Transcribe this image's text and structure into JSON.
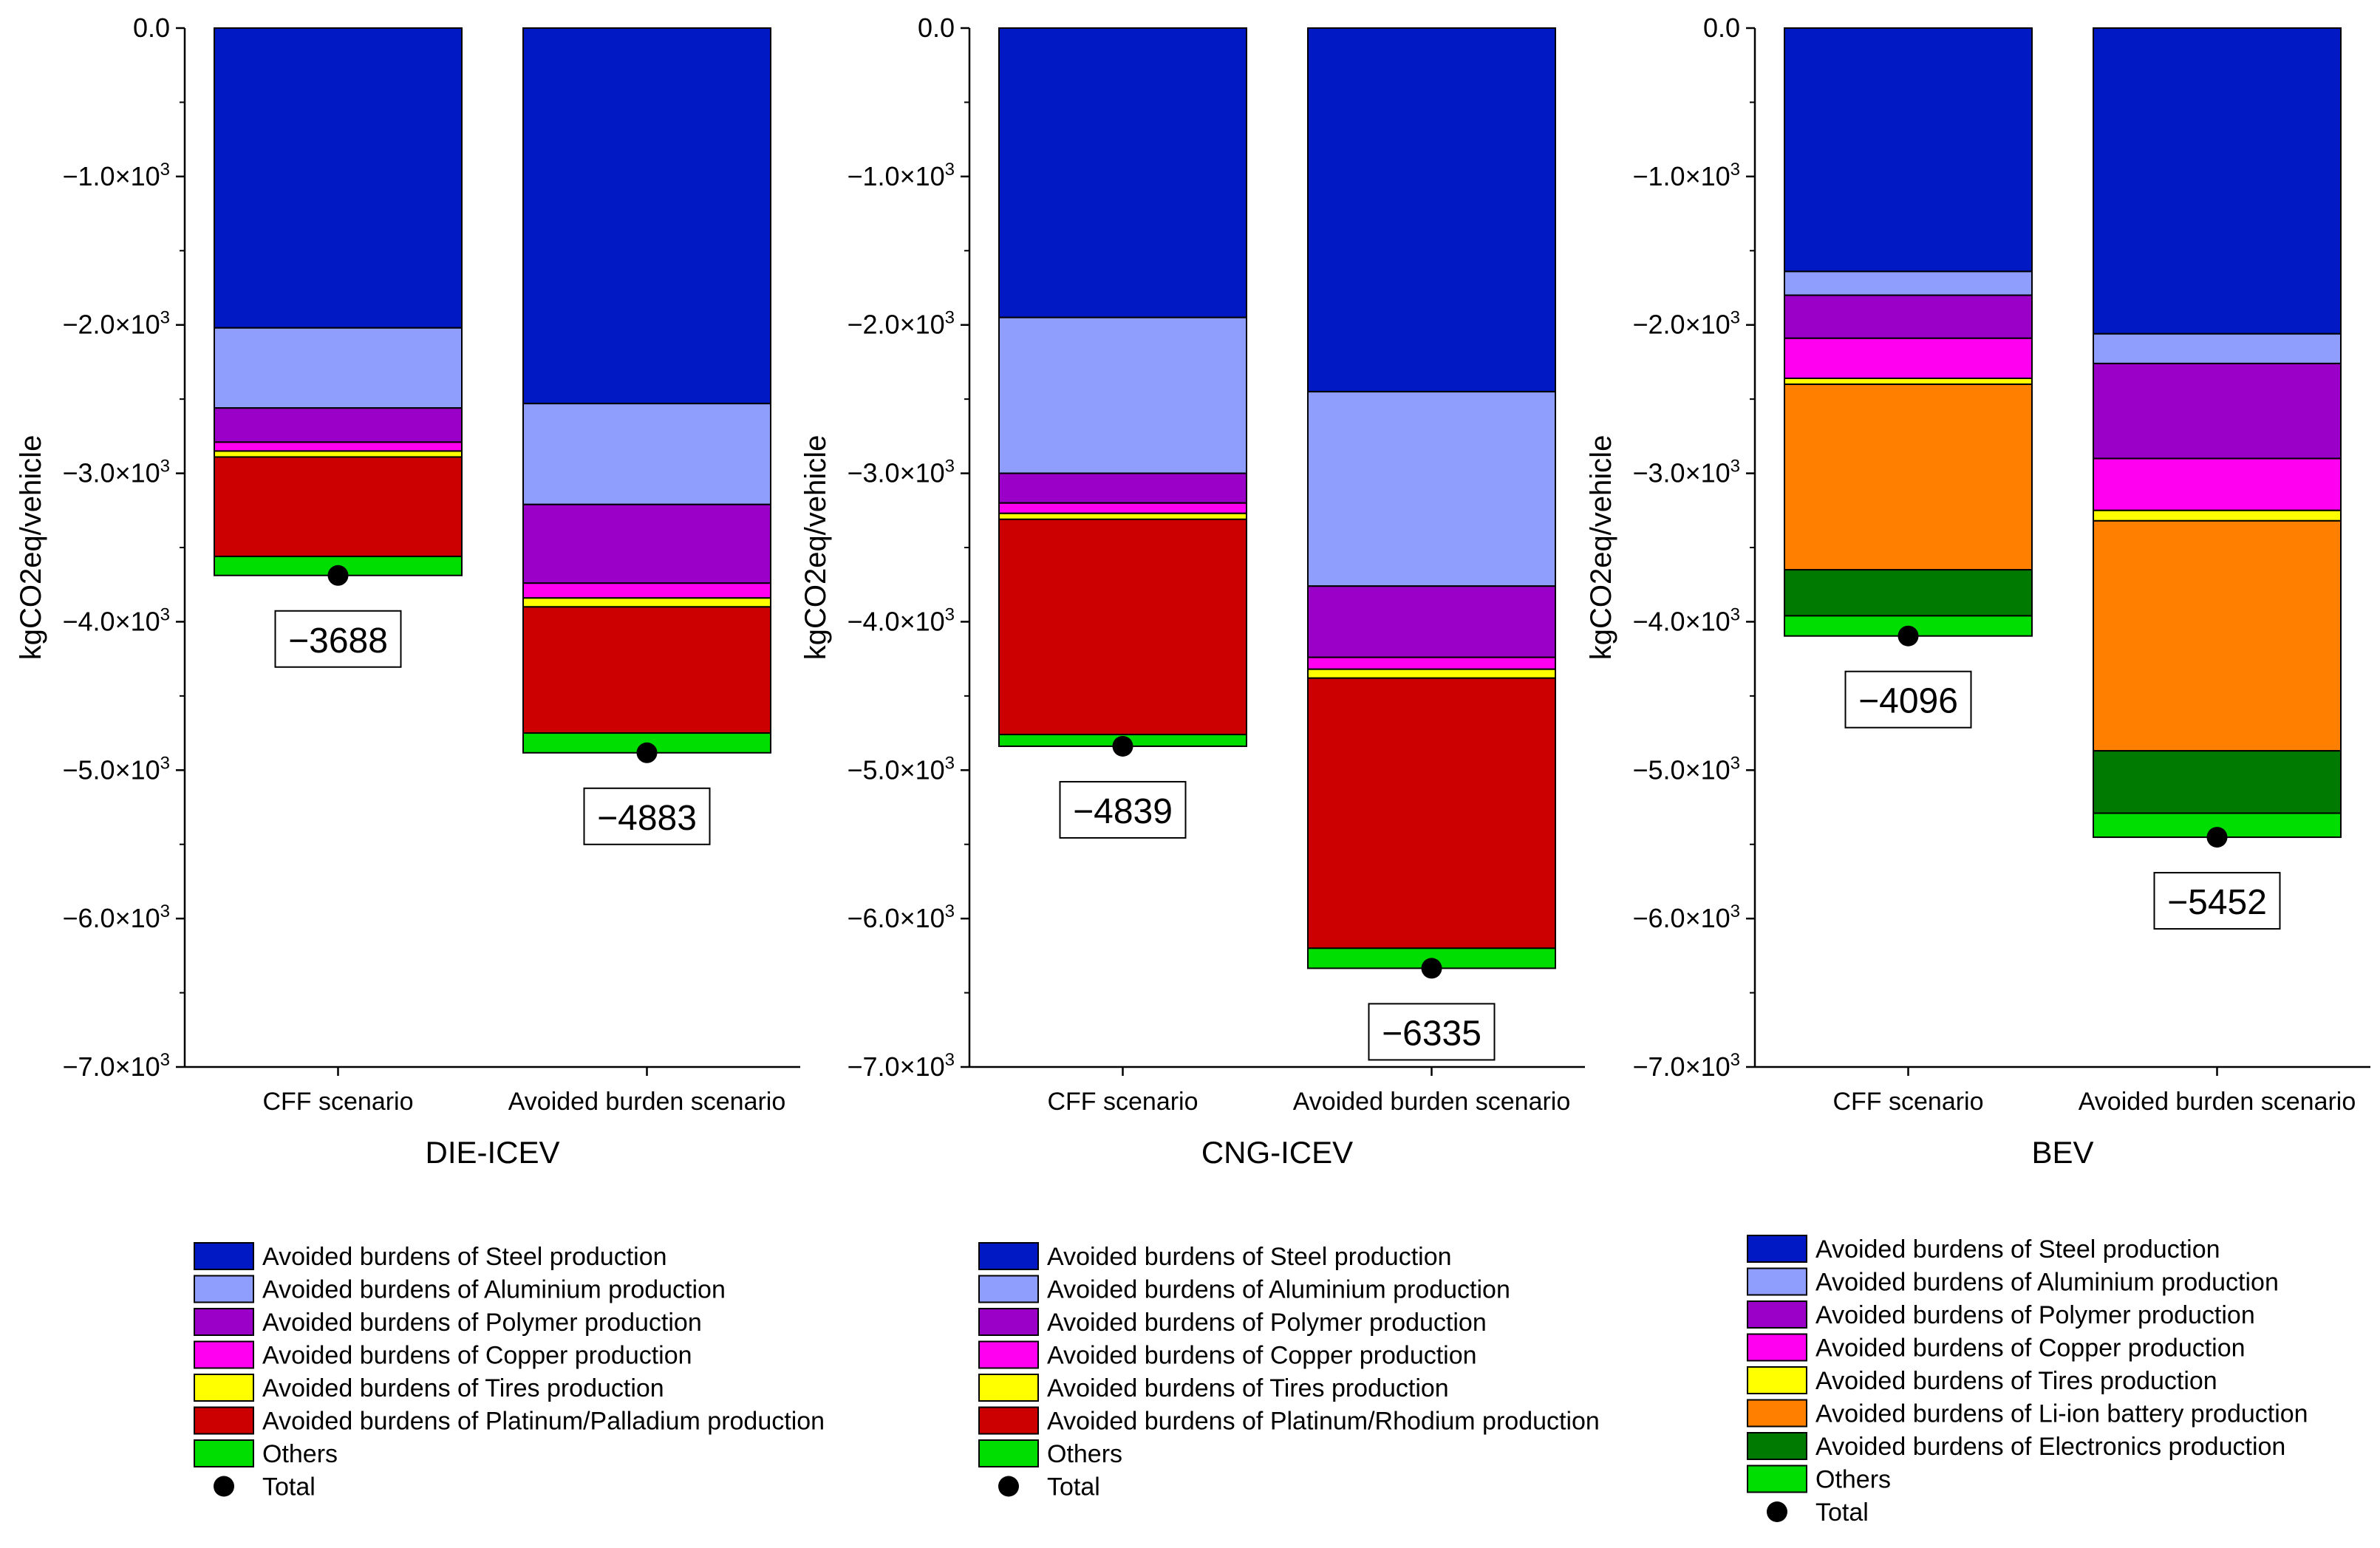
{
  "chart_data": [
    {
      "type": "bar",
      "stacked": true,
      "title": "DIE-ICEV",
      "ylabel": "kgCO2eq/vehicle",
      "ylim": [
        -7000,
        0
      ],
      "categories": [
        "CFF scenario",
        "Avoided burden scenario"
      ],
      "yticks": [
        {
          "value": 0,
          "label": "0.0"
        },
        {
          "value": -1000,
          "label": "−1.0×10",
          "exp": "3"
        },
        {
          "value": -2000,
          "label": "−2.0×10",
          "exp": "3"
        },
        {
          "value": -3000,
          "label": "−3.0×10",
          "exp": "3"
        },
        {
          "value": -4000,
          "label": "−4.0×10",
          "exp": "3"
        },
        {
          "value": -5000,
          "label": "−5.0×10",
          "exp": "3"
        },
        {
          "value": -6000,
          "label": "−6.0×10",
          "exp": "3"
        },
        {
          "value": -7000,
          "label": "−7.0×10",
          "exp": "3"
        }
      ],
      "series": [
        {
          "name": "Avoided burdens of Steel production",
          "color": "#0019C4",
          "values": [
            -2020,
            -2530
          ]
        },
        {
          "name": "Avoided burdens of Aluminium production",
          "color": "#8F9DFC",
          "values": [
            -540,
            -680
          ]
        },
        {
          "name": "Avoided burdens of Polymer production",
          "color": "#9A00C7",
          "values": [
            -230,
            -530
          ]
        },
        {
          "name": "Avoided burdens of Copper production",
          "color": "#FF00F0",
          "values": [
            -60,
            -100
          ]
        },
        {
          "name": "Avoided burdens of Tires production",
          "color": "#FFFF00",
          "values": [
            -40,
            -60
          ]
        },
        {
          "name": "Avoided burdens of Platinum/Palladium production",
          "color": "#CC0000",
          "values": [
            -670,
            -850
          ]
        },
        {
          "name": "Others",
          "color": "#00DD00",
          "values": [
            -128,
            -133
          ]
        }
      ],
      "totals": [
        -3688,
        -4883
      ],
      "total_labels": [
        "−3688",
        "−4883"
      ],
      "legend_total_label": "Total"
    },
    {
      "type": "bar",
      "stacked": true,
      "title": "CNG-ICEV",
      "ylabel": "kgCO2eq/vehicle",
      "ylim": [
        -7000,
        0
      ],
      "categories": [
        "CFF scenario",
        "Avoided burden scenario"
      ],
      "yticks": [
        {
          "value": 0,
          "label": "0.0"
        },
        {
          "value": -1000,
          "label": "−1.0×10",
          "exp": "3"
        },
        {
          "value": -2000,
          "label": "−2.0×10",
          "exp": "3"
        },
        {
          "value": -3000,
          "label": "−3.0×10",
          "exp": "3"
        },
        {
          "value": -4000,
          "label": "−4.0×10",
          "exp": "3"
        },
        {
          "value": -5000,
          "label": "−5.0×10",
          "exp": "3"
        },
        {
          "value": -6000,
          "label": "−6.0×10",
          "exp": "3"
        },
        {
          "value": -7000,
          "label": "−7.0×10",
          "exp": "3"
        }
      ],
      "series": [
        {
          "name": "Avoided burdens of Steel production",
          "color": "#0019C4",
          "values": [
            -1950,
            -2450
          ]
        },
        {
          "name": "Avoided burdens of Aluminium production",
          "color": "#8F9DFC",
          "values": [
            -1050,
            -1310
          ]
        },
        {
          "name": "Avoided burdens of Polymer production",
          "color": "#9A00C7",
          "values": [
            -200,
            -480
          ]
        },
        {
          "name": "Avoided burdens of Copper production",
          "color": "#FF00F0",
          "values": [
            -70,
            -80
          ]
        },
        {
          "name": "Avoided burdens of Tires production",
          "color": "#FFFF00",
          "values": [
            -40,
            -60
          ]
        },
        {
          "name": "Avoided burdens of Platinum/Rhodium production",
          "color": "#CC0000",
          "values": [
            -1450,
            -1820
          ]
        },
        {
          "name": "Others",
          "color": "#00DD00",
          "values": [
            -79,
            -135
          ]
        }
      ],
      "totals": [
        -4839,
        -6335
      ],
      "total_labels": [
        "−4839",
        "−6335"
      ],
      "legend_total_label": "Total"
    },
    {
      "type": "bar",
      "stacked": true,
      "title": "BEV",
      "ylabel": "kgCO2eq/vehicle",
      "ylim": [
        -7000,
        0
      ],
      "categories": [
        "CFF scenario",
        "Avoided burden scenario"
      ],
      "yticks": [
        {
          "value": 0,
          "label": "0.0"
        },
        {
          "value": -1000,
          "label": "−1.0×10",
          "exp": "3"
        },
        {
          "value": -2000,
          "label": "−2.0×10",
          "exp": "3"
        },
        {
          "value": -3000,
          "label": "−3.0×10",
          "exp": "3"
        },
        {
          "value": -4000,
          "label": "−4.0×10",
          "exp": "3"
        },
        {
          "value": -5000,
          "label": "−5.0×10",
          "exp": "3"
        },
        {
          "value": -6000,
          "label": "−6.0×10",
          "exp": "3"
        },
        {
          "value": -7000,
          "label": "−7.0×10",
          "exp": "3"
        }
      ],
      "series": [
        {
          "name": "Avoided burdens of Steel production",
          "color": "#0019C4",
          "values": [
            -1640,
            -2060
          ]
        },
        {
          "name": "Avoided burdens of Aluminium production",
          "color": "#8F9DFC",
          "values": [
            -160,
            -200
          ]
        },
        {
          "name": "Avoided burdens of Polymer production",
          "color": "#9A00C7",
          "values": [
            -290,
            -640
          ]
        },
        {
          "name": "Avoided burdens of Copper production",
          "color": "#FF00F0",
          "values": [
            -270,
            -350
          ]
        },
        {
          "name": "Avoided burdens of Tires production",
          "color": "#FFFF00",
          "values": [
            -40,
            -70
          ]
        },
        {
          "name": "Avoided burdens of Li-ion battery production",
          "color": "#FF8000",
          "values": [
            -1250,
            -1550
          ]
        },
        {
          "name": "Avoided burdens of Electronics production",
          "color": "#007A00",
          "values": [
            -310,
            -420
          ]
        },
        {
          "name": "Others",
          "color": "#00DD00",
          "values": [
            -136,
            -162
          ]
        }
      ],
      "totals": [
        -4096,
        -5452
      ],
      "total_labels": [
        "−4096",
        "−5452"
      ],
      "legend_total_label": "Total"
    }
  ]
}
